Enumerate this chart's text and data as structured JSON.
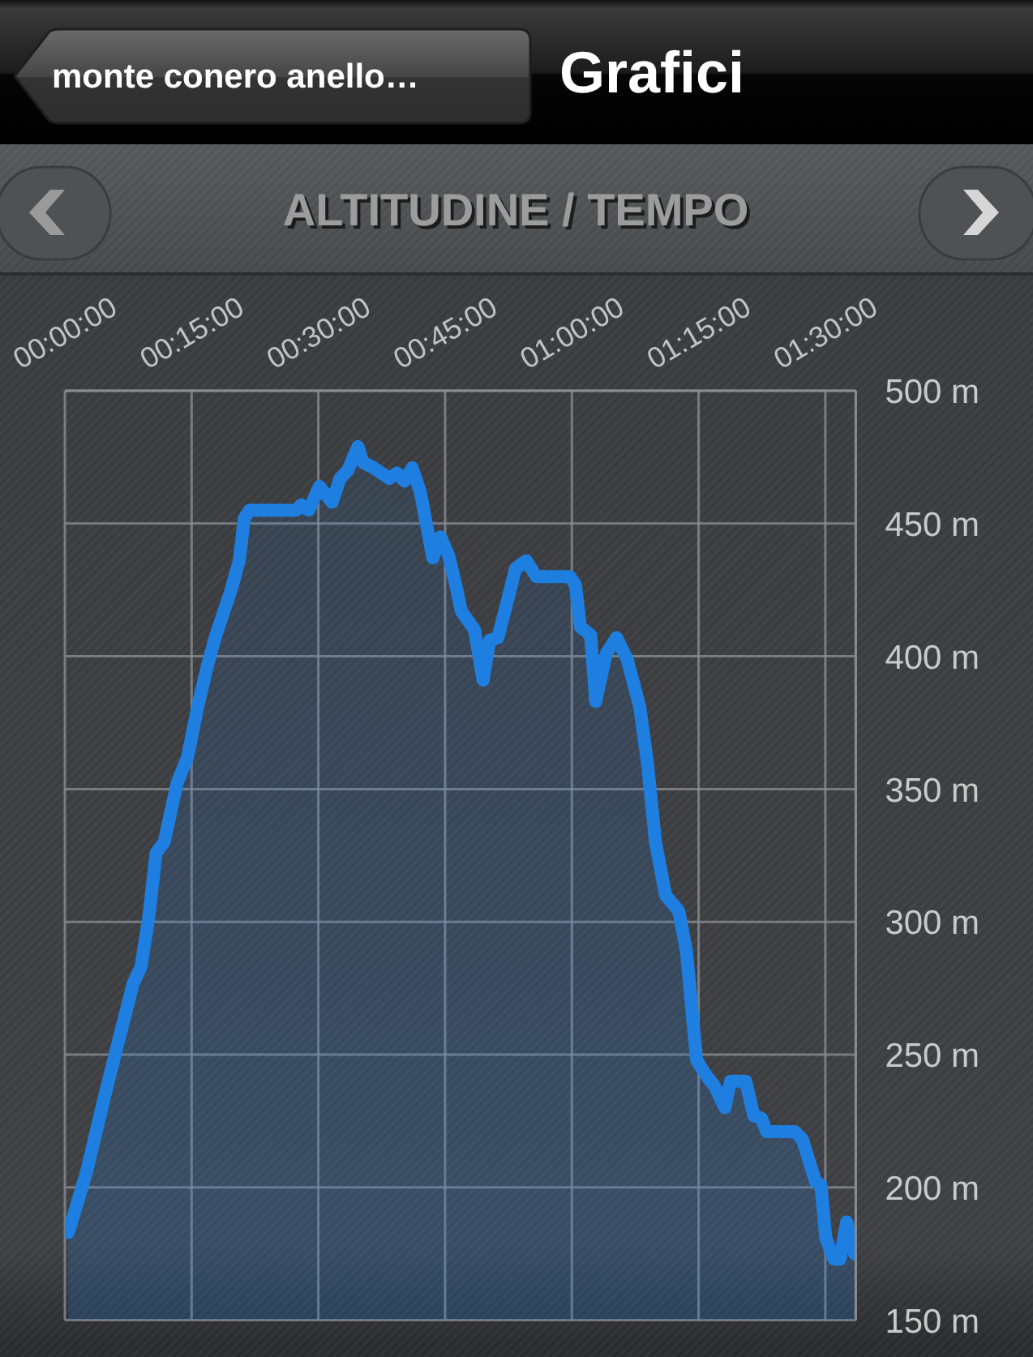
{
  "chart_data": {
    "type": "area",
    "title": "ALTITUDINE / TEMPO",
    "annotations": [
      "monte conero anello…",
      "Grafici"
    ],
    "x": [
      0.007,
      0.043,
      0.078,
      0.099,
      0.135,
      0.15,
      0.165,
      0.18,
      0.196,
      0.221,
      0.242,
      0.262,
      0.282,
      0.298,
      0.328,
      0.344,
      0.354,
      0.364,
      0.456,
      0.466,
      0.481,
      0.502,
      0.527,
      0.543,
      0.558,
      0.578,
      0.588,
      0.609,
      0.64,
      0.655,
      0.67,
      0.685,
      0.701,
      0.716,
      0.726,
      0.741,
      0.757,
      0.772,
      0.782,
      0.808,
      0.825,
      0.838,
      0.854,
      0.869,
      0.889,
      0.91,
      0.93,
      0.996,
      1.007,
      1.017,
      1.037,
      1.047,
      1.068,
      1.088,
      1.109,
      1.134,
      1.149,
      1.165,
      1.185,
      1.211,
      1.226,
      1.246,
      1.262,
      1.282,
      1.302,
      1.313,
      1.343,
      1.359,
      1.374,
      1.384,
      1.44,
      1.455,
      1.481,
      1.491,
      1.501,
      1.517,
      1.529,
      1.542,
      1.558
    ],
    "values": [
      183,
      206,
      234,
      250,
      277,
      283,
      301,
      326,
      330,
      352,
      362,
      381,
      397,
      408,
      425,
      436,
      452,
      455,
      455,
      457,
      455,
      464,
      458,
      467,
      470,
      479,
      473,
      471,
      467,
      469,
      466,
      471,
      462,
      447,
      437,
      445,
      438,
      426,
      417,
      410,
      391,
      406,
      407,
      418,
      433,
      436,
      430,
      430,
      427,
      411,
      408,
      383,
      401,
      407,
      399,
      381,
      360,
      330,
      310,
      304,
      289,
      248,
      243,
      238,
      230,
      240,
      240,
      227,
      226,
      221,
      221,
      218,
      202,
      201,
      181,
      173,
      173,
      187,
      175
    ],
    "color": "#1f7fe0",
    "xlim": [
      0,
      1.56
    ],
    "xticks": [
      {
        "value": 0,
        "label": "00:00:00"
      },
      {
        "value": 0.25,
        "label": "00:15:00"
      },
      {
        "value": 0.5,
        "label": "00:30:00"
      },
      {
        "value": 0.75,
        "label": "00:45:00"
      },
      {
        "value": 1,
        "label": "01:00:00"
      },
      {
        "value": 1.25,
        "label": "01:15:00"
      },
      {
        "value": 1.5,
        "label": "01:30:00"
      }
    ],
    "ylim": [
      150,
      500
    ],
    "yticks": [
      {
        "value": 150,
        "label": "150 m"
      },
      {
        "value": 200,
        "label": "200 m"
      },
      {
        "value": 250,
        "label": "250 m"
      },
      {
        "value": 300,
        "label": "300 m"
      },
      {
        "value": 350,
        "label": "350 m"
      },
      {
        "value": 400,
        "label": "400 m"
      },
      {
        "value": 450,
        "label": "450 m"
      },
      {
        "value": 500,
        "label": "500 m"
      }
    ],
    "grid": true
  }
}
